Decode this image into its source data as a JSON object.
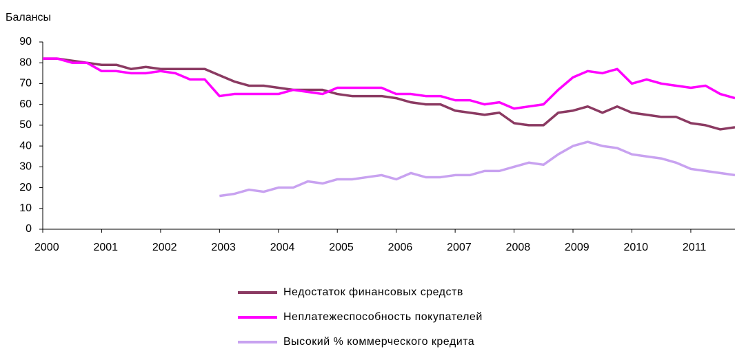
{
  "chart_data": {
    "type": "line",
    "y_label": "Балансы",
    "x": [
      2000,
      2000.25,
      2000.5,
      2000.75,
      2001,
      2001.25,
      2001.5,
      2001.75,
      2002,
      2002.25,
      2002.5,
      2002.75,
      2003,
      2003.25,
      2003.5,
      2003.75,
      2004,
      2004.25,
      2004.5,
      2004.75,
      2005,
      2005.25,
      2005.5,
      2005.75,
      2006,
      2006.25,
      2006.5,
      2006.75,
      2007,
      2007.25,
      2007.5,
      2007.75,
      2008,
      2008.25,
      2008.5,
      2008.75,
      2009,
      2009.25,
      2009.5,
      2009.75,
      2010,
      2010.25,
      2010.5,
      2010.75,
      2011,
      2011.25,
      2011.5,
      2011.75
    ],
    "series": [
      {
        "name": "Недостаток финансовых средств",
        "color": "#8b3a62",
        "values": [
          82,
          82,
          81,
          80,
          79,
          79,
          77,
          78,
          77,
          77,
          77,
          77,
          74,
          71,
          69,
          69,
          68,
          67,
          67,
          67,
          65,
          64,
          64,
          64,
          63,
          61,
          60,
          60,
          57,
          56,
          55,
          56,
          51,
          50,
          50,
          56,
          57,
          59,
          56,
          59,
          56,
          55,
          54,
          54,
          51,
          50,
          48,
          49
        ]
      },
      {
        "name": "Неплатежеспособность покупателей",
        "color": "#ff00ff",
        "values": [
          82,
          82,
          80,
          80,
          76,
          76,
          75,
          75,
          76,
          75,
          72,
          72,
          64,
          65,
          65,
          65,
          65,
          67,
          66,
          65,
          68,
          68,
          68,
          68,
          65,
          65,
          64,
          64,
          62,
          62,
          60,
          61,
          58,
          59,
          60,
          67,
          73,
          76,
          75,
          77,
          70,
          72,
          70,
          69,
          68,
          69,
          65,
          63
        ]
      },
      {
        "name": "Высокий % коммерческого кредита",
        "color": "#c8a2f0",
        "values": [
          null,
          null,
          null,
          null,
          null,
          null,
          null,
          null,
          null,
          null,
          null,
          null,
          16,
          17,
          19,
          18,
          20,
          20,
          23,
          22,
          24,
          24,
          25,
          26,
          24,
          27,
          25,
          25,
          26,
          26,
          28,
          28,
          30,
          32,
          31,
          36,
          40,
          42,
          40,
          39,
          36,
          35,
          34,
          32,
          29,
          28,
          27,
          26
        ]
      }
    ],
    "xlim": [
      2000,
      2011.75
    ],
    "xticks": [
      2000,
      2001,
      2002,
      2003,
      2004,
      2005,
      2006,
      2007,
      2008,
      2009,
      2010,
      2011
    ],
    "ylim": [
      0,
      90
    ],
    "yticks": [
      0,
      10,
      20,
      30,
      40,
      50,
      60,
      70,
      80,
      90
    ],
    "grid": false
  }
}
